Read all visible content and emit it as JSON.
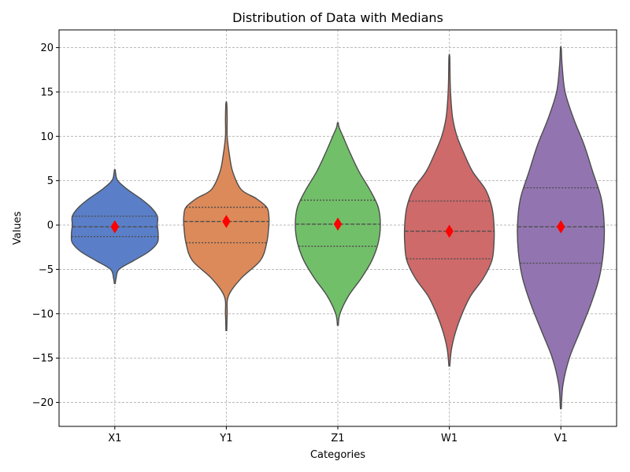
{
  "chart_data": {
    "type": "violin",
    "title": "Distribution of Data with Medians",
    "xlabel": "Categories",
    "ylabel": "Values",
    "ylim": [
      -22.7,
      22.0
    ],
    "yticks": [
      -20,
      -15,
      -10,
      -5,
      0,
      5,
      10,
      15,
      20
    ],
    "grid": true,
    "categories": [
      "X1",
      "Y1",
      "Z1",
      "W1",
      "V1"
    ],
    "series": [
      {
        "category": "X1",
        "color": "#5a7fc8",
        "min": -6.6,
        "max": 6.2,
        "q1": -1.3,
        "median": -0.2,
        "q3": 1.0,
        "profile": [
          [
            -6.6,
            0.01
          ],
          [
            -6.0,
            0.03
          ],
          [
            -5.0,
            0.1
          ],
          [
            -4.0,
            0.45
          ],
          [
            -3.0,
            0.8
          ],
          [
            -2.0,
            1.0
          ],
          [
            -1.0,
            1.02
          ],
          [
            0.0,
            1.0
          ],
          [
            1.0,
            1.0
          ],
          [
            2.0,
            0.85
          ],
          [
            3.0,
            0.6
          ],
          [
            4.0,
            0.3
          ],
          [
            5.0,
            0.07
          ],
          [
            5.8,
            0.02
          ],
          [
            6.2,
            0.01
          ]
        ]
      },
      {
        "category": "Y1",
        "color": "#dd8a5a",
        "min": -11.9,
        "max": 13.7,
        "q1": -2.0,
        "median": 0.4,
        "q3": 2.0,
        "profile": [
          [
            -11.9,
            0.01
          ],
          [
            -10.0,
            0.02
          ],
          [
            -8.0,
            0.05
          ],
          [
            -6.0,
            0.35
          ],
          [
            -4.0,
            0.8
          ],
          [
            -2.0,
            0.95
          ],
          [
            0.0,
            1.0
          ],
          [
            1.0,
            1.0
          ],
          [
            2.0,
            0.95
          ],
          [
            3.0,
            0.7
          ],
          [
            4.0,
            0.35
          ],
          [
            6.0,
            0.15
          ],
          [
            8.0,
            0.07
          ],
          [
            10.0,
            0.02
          ],
          [
            12.0,
            0.02
          ],
          [
            13.7,
            0.01
          ]
        ]
      },
      {
        "category": "Z1",
        "color": "#72bf6a",
        "min": -11.3,
        "max": 11.5,
        "q1": -2.4,
        "median": 0.1,
        "q3": 2.8,
        "profile": [
          [
            -11.3,
            0.01
          ],
          [
            -10.0,
            0.05
          ],
          [
            -8.0,
            0.25
          ],
          [
            -6.0,
            0.55
          ],
          [
            -4.0,
            0.8
          ],
          [
            -2.0,
            0.95
          ],
          [
            0.0,
            1.0
          ],
          [
            2.0,
            0.95
          ],
          [
            4.0,
            0.75
          ],
          [
            6.0,
            0.5
          ],
          [
            8.0,
            0.3
          ],
          [
            10.0,
            0.12
          ],
          [
            11.0,
            0.03
          ],
          [
            11.5,
            0.01
          ]
        ]
      },
      {
        "category": "W1",
        "color": "#cf6a6a",
        "min": -15.9,
        "max": 18.9,
        "q1": -3.8,
        "median": -0.7,
        "q3": 2.7,
        "profile": [
          [
            -15.9,
            0.01
          ],
          [
            -14.0,
            0.05
          ],
          [
            -12.0,
            0.15
          ],
          [
            -10.0,
            0.3
          ],
          [
            -8.0,
            0.5
          ],
          [
            -6.0,
            0.8
          ],
          [
            -4.0,
            1.0
          ],
          [
            -2.0,
            1.05
          ],
          [
            0.0,
            1.05
          ],
          [
            2.0,
            1.0
          ],
          [
            4.0,
            0.85
          ],
          [
            6.0,
            0.55
          ],
          [
            8.0,
            0.35
          ],
          [
            10.0,
            0.18
          ],
          [
            12.0,
            0.08
          ],
          [
            14.0,
            0.04
          ],
          [
            16.0,
            0.02
          ],
          [
            18.9,
            0.01
          ]
        ]
      },
      {
        "category": "V1",
        "color": "#9275b0",
        "min": -20.7,
        "max": 19.9,
        "q1": -4.3,
        "median": -0.2,
        "q3": 4.2,
        "profile": [
          [
            -20.7,
            0.01
          ],
          [
            -18.0,
            0.05
          ],
          [
            -15.0,
            0.2
          ],
          [
            -12.0,
            0.45
          ],
          [
            -9.0,
            0.7
          ],
          [
            -6.0,
            0.9
          ],
          [
            -3.0,
            1.0
          ],
          [
            0.0,
            1.02
          ],
          [
            3.0,
            0.95
          ],
          [
            6.0,
            0.75
          ],
          [
            9.0,
            0.55
          ],
          [
            12.0,
            0.3
          ],
          [
            15.0,
            0.1
          ],
          [
            18.0,
            0.03
          ],
          [
            19.9,
            0.01
          ]
        ]
      }
    ],
    "median_marker_color": "#ff0000"
  }
}
